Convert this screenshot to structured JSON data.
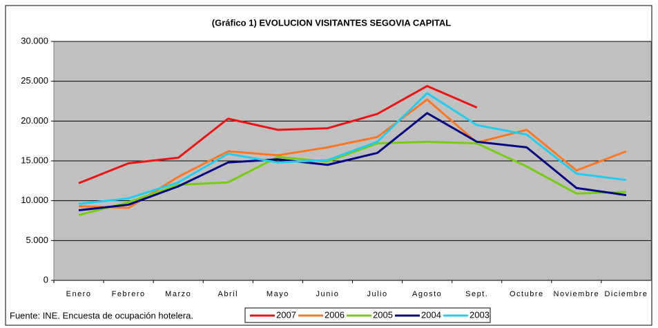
{
  "chart_data": {
    "type": "line",
    "title": "(Gráfico 1) EVOLUCION VISITANTES SEGOVIA CAPITAL",
    "source": "Fuente: INE. Encuesta de ocupación hotelera.",
    "categories": [
      "Enero",
      "Febrero",
      "Marzo",
      "Abril",
      "Mayo",
      "Junio",
      "Julio",
      "Agosto",
      "Sept.",
      "Octubre",
      "Noviembre",
      "Diciembre"
    ],
    "series": [
      {
        "name": "2007",
        "color": "#ee1111",
        "values": [
          12200,
          14700,
          15400,
          20300,
          18900,
          19100,
          20900,
          24400,
          21700,
          null,
          null,
          null
        ]
      },
      {
        "name": "2006",
        "color": "#ff7722",
        "values": [
          9300,
          9100,
          13000,
          16200,
          15700,
          16700,
          18000,
          22700,
          17300,
          18900,
          13800,
          16200
        ]
      },
      {
        "name": "2005",
        "color": "#77cc11",
        "values": [
          8200,
          9800,
          12000,
          12300,
          15500,
          14900,
          17200,
          17400,
          17200,
          14300,
          10900,
          11100
        ]
      },
      {
        "name": "2004",
        "color": "#000080",
        "values": [
          8800,
          9500,
          11800,
          14800,
          15200,
          14500,
          16000,
          21000,
          17400,
          16700,
          11600,
          10700
        ]
      },
      {
        "name": "2003",
        "color": "#22ccee",
        "values": [
          9600,
          10300,
          12300,
          15900,
          14800,
          15100,
          17400,
          23500,
          19500,
          18300,
          13400,
          12600
        ]
      }
    ],
    "ylim": [
      0,
      30000
    ],
    "yticks": [
      0,
      {
        "value": 5000,
        "label": "5.000"
      },
      {
        "value": 10000,
        "label": "10.000"
      },
      {
        "value": 15000,
        "label": "15.000"
      },
      {
        "value": 20000,
        "label": "20.000"
      },
      {
        "value": 25000,
        "label": "25.000"
      },
      {
        "value": 30000,
        "label": "30.000"
      }
    ],
    "grid": true,
    "legend": "bottom"
  }
}
